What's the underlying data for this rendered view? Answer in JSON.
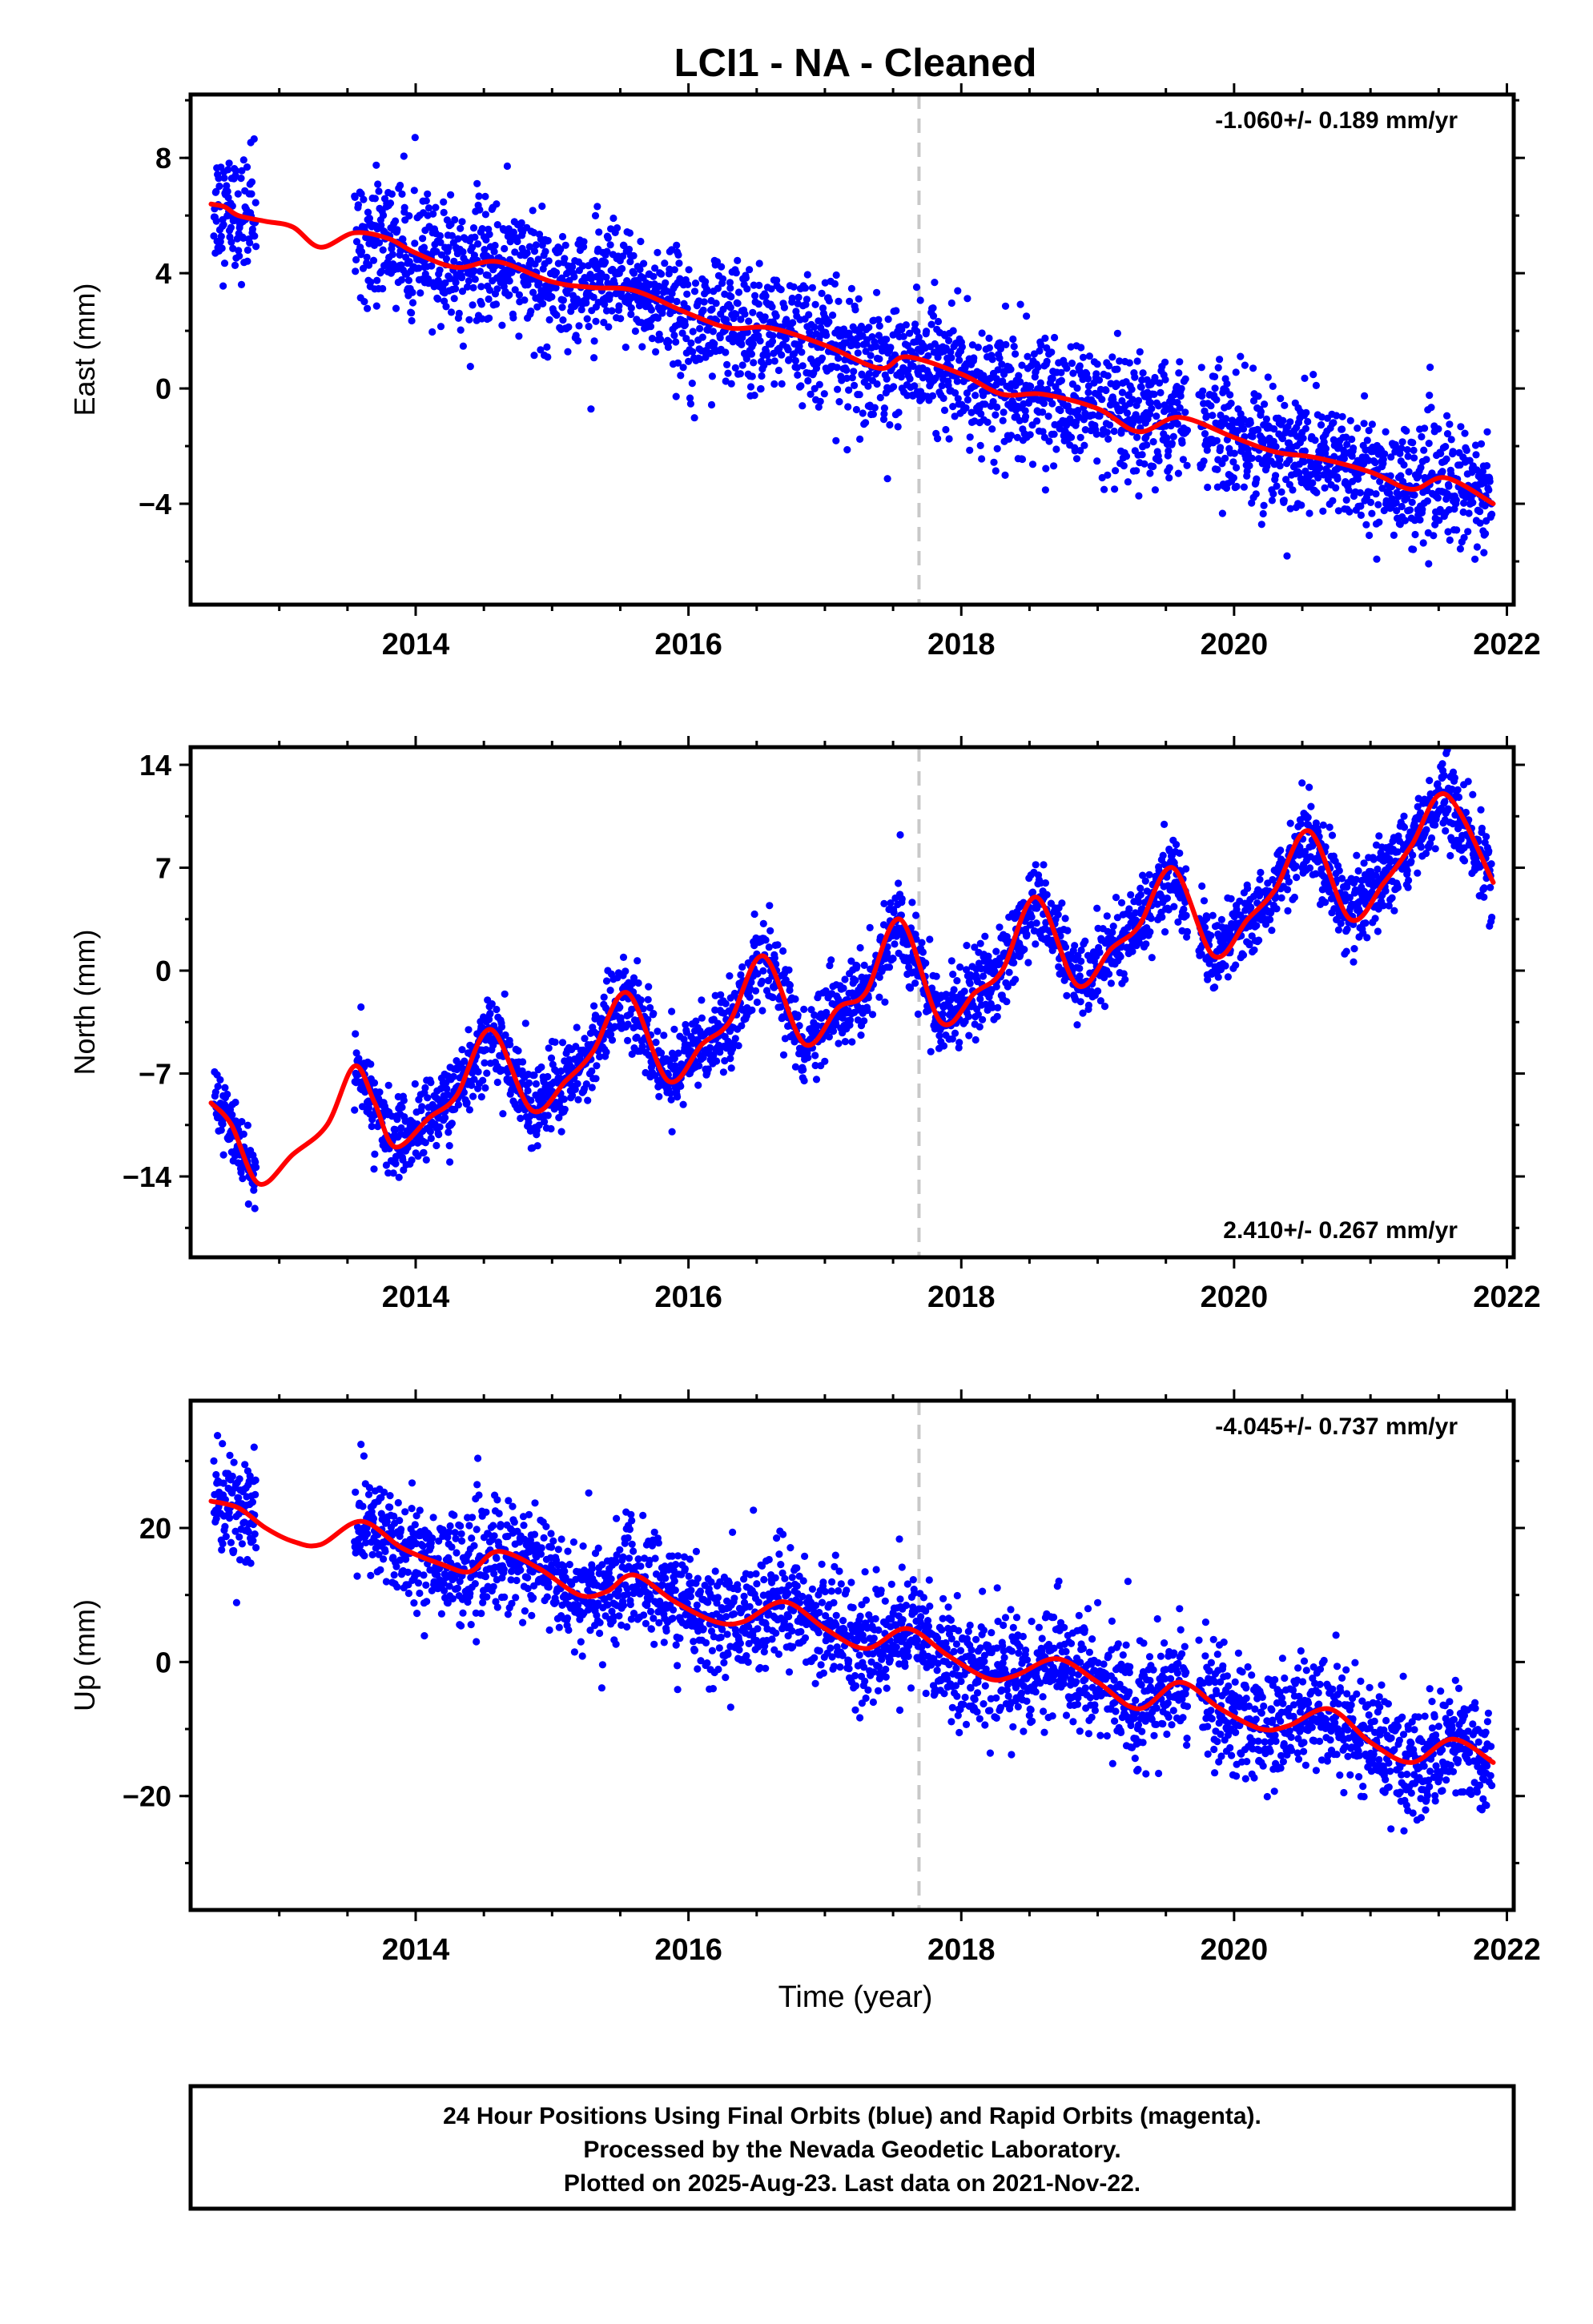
{
  "title": "LCI1  - NA - Cleaned",
  "xlabel": "Time (year)",
  "footer": [
    "24 Hour Positions Using Final Orbits (blue) and Rapid Orbits (magenta).",
    "Processed by the Nevada Geodetic Laboratory.",
    "Plotted on 2025-Aug-23. Last data on 2021-Nov-22."
  ],
  "colors": {
    "points": "#0000ff",
    "model": "#ff0000",
    "event_line": "#c8c8c8",
    "frame": "#000000"
  },
  "chart_data": [
    {
      "type": "scatter",
      "ylabel": "East (mm)",
      "rate_label": "-1.060+/- 0.189 mm/yr",
      "rate_position": "top-right",
      "xlim": [
        2012.35,
        2022.05
      ],
      "ylim": [
        -7.5,
        10.2
      ],
      "yticks": [
        -4,
        0,
        4,
        8
      ],
      "xticks": [
        2014,
        2016,
        2018,
        2020,
        2022
      ],
      "event_line_x": 2017.69,
      "series": [
        {
          "data": [
            [
              2012.5,
              6.4
            ],
            [
              2012.6,
              6.3
            ],
            [
              2012.7,
              6.0
            ],
            [
              2012.9,
              5.8
            ],
            [
              2013.1,
              5.6
            ],
            [
              2013.3,
              4.9
            ],
            [
              2013.55,
              5.4
            ],
            [
              2013.8,
              5.2
            ],
            [
              2014.0,
              4.7
            ],
            [
              2014.3,
              4.2
            ],
            [
              2014.6,
              4.4
            ],
            [
              2015.0,
              3.7
            ],
            [
              2015.3,
              3.5
            ],
            [
              2015.6,
              3.4
            ],
            [
              2016.0,
              2.6
            ],
            [
              2016.3,
              2.1
            ],
            [
              2016.6,
              2.1
            ],
            [
              2017.0,
              1.5
            ],
            [
              2017.4,
              0.7
            ],
            [
              2017.6,
              1.1
            ],
            [
              2018.0,
              0.5
            ],
            [
              2018.3,
              -0.2
            ],
            [
              2018.6,
              -0.2
            ],
            [
              2019.0,
              -0.7
            ],
            [
              2019.3,
              -1.5
            ],
            [
              2019.6,
              -1.0
            ],
            [
              2020.0,
              -1.7
            ],
            [
              2020.3,
              -2.2
            ],
            [
              2020.6,
              -2.4
            ],
            [
              2021.0,
              -2.9
            ],
            [
              2021.3,
              -3.5
            ],
            [
              2021.55,
              -3.1
            ],
            [
              2021.9,
              -4.0
            ]
          ]
        }
      ]
    },
    {
      "type": "scatter",
      "ylabel": "North (mm)",
      "rate_label": "2.410+/- 0.267 mm/yr",
      "rate_position": "bottom-right",
      "xlim": [
        2012.35,
        2022.05
      ],
      "ylim": [
        -19.5,
        15.2
      ],
      "yticks": [
        -14,
        -7,
        0,
        7,
        14
      ],
      "xticks": [
        2014,
        2016,
        2018,
        2020,
        2022
      ],
      "event_line_x": 2017.69,
      "series": [
        {
          "data": [
            [
              2012.5,
              -9.0
            ],
            [
              2012.65,
              -10.5
            ],
            [
              2012.85,
              -14.5
            ],
            [
              2013.1,
              -12.5
            ],
            [
              2013.35,
              -10.5
            ],
            [
              2013.55,
              -6.5
            ],
            [
              2013.7,
              -9.0
            ],
            [
              2013.85,
              -12.0
            ],
            [
              2014.1,
              -10.0
            ],
            [
              2014.3,
              -8.5
            ],
            [
              2014.55,
              -4.0
            ],
            [
              2014.85,
              -9.5
            ],
            [
              2015.1,
              -7.5
            ],
            [
              2015.3,
              -5.5
            ],
            [
              2015.55,
              -1.5
            ],
            [
              2015.85,
              -7.5
            ],
            [
              2016.1,
              -5.0
            ],
            [
              2016.3,
              -3.5
            ],
            [
              2016.55,
              1.0
            ],
            [
              2016.85,
              -5.0
            ],
            [
              2017.1,
              -2.5
            ],
            [
              2017.3,
              -1.5
            ],
            [
              2017.55,
              3.5
            ],
            [
              2017.85,
              -3.5
            ],
            [
              2018.1,
              -1.5
            ],
            [
              2018.3,
              0.0
            ],
            [
              2018.55,
              5.0
            ],
            [
              2018.85,
              -1.0
            ],
            [
              2019.1,
              1.5
            ],
            [
              2019.3,
              3.0
            ],
            [
              2019.55,
              7.0
            ],
            [
              2019.85,
              1.0
            ],
            [
              2020.1,
              3.5
            ],
            [
              2020.3,
              5.5
            ],
            [
              2020.55,
              9.5
            ],
            [
              2020.85,
              3.5
            ],
            [
              2021.1,
              6.0
            ],
            [
              2021.3,
              8.5
            ],
            [
              2021.55,
              12.0
            ],
            [
              2021.9,
              6.0
            ]
          ]
        }
      ]
    },
    {
      "type": "scatter",
      "ylabel": "Up (mm)",
      "rate_label": "-4.045+/- 0.737 mm/yr",
      "rate_position": "top-right",
      "xlim": [
        2012.35,
        2022.05
      ],
      "ylim": [
        -37,
        39
      ],
      "yticks": [
        -20,
        0,
        20
      ],
      "xticks": [
        2014,
        2016,
        2018,
        2020,
        2022
      ],
      "event_line_x": 2017.69,
      "series": [
        {
          "data": [
            [
              2012.5,
              24
            ],
            [
              2012.7,
              23
            ],
            [
              2012.9,
              20
            ],
            [
              2013.1,
              18
            ],
            [
              2013.3,
              17.5
            ],
            [
              2013.6,
              21
            ],
            [
              2013.9,
              17
            ],
            [
              2014.2,
              14.5
            ],
            [
              2014.4,
              13.5
            ],
            [
              2014.6,
              16.5
            ],
            [
              2014.9,
              14
            ],
            [
              2015.2,
              10
            ],
            [
              2015.4,
              10.5
            ],
            [
              2015.6,
              13
            ],
            [
              2015.9,
              9
            ],
            [
              2016.2,
              6
            ],
            [
              2016.4,
              6
            ],
            [
              2016.7,
              9
            ],
            [
              2017.0,
              5
            ],
            [
              2017.3,
              2
            ],
            [
              2017.6,
              5
            ],
            [
              2017.9,
              1
            ],
            [
              2018.2,
              -2.5
            ],
            [
              2018.4,
              -2
            ],
            [
              2018.7,
              0.5
            ],
            [
              2019.0,
              -3
            ],
            [
              2019.3,
              -7
            ],
            [
              2019.6,
              -3
            ],
            [
              2019.9,
              -7
            ],
            [
              2020.2,
              -10
            ],
            [
              2020.4,
              -9.5
            ],
            [
              2020.7,
              -7
            ],
            [
              2021.0,
              -12
            ],
            [
              2021.3,
              -15
            ],
            [
              2021.6,
              -11.5
            ],
            [
              2021.9,
              -15
            ]
          ]
        }
      ]
    }
  ]
}
